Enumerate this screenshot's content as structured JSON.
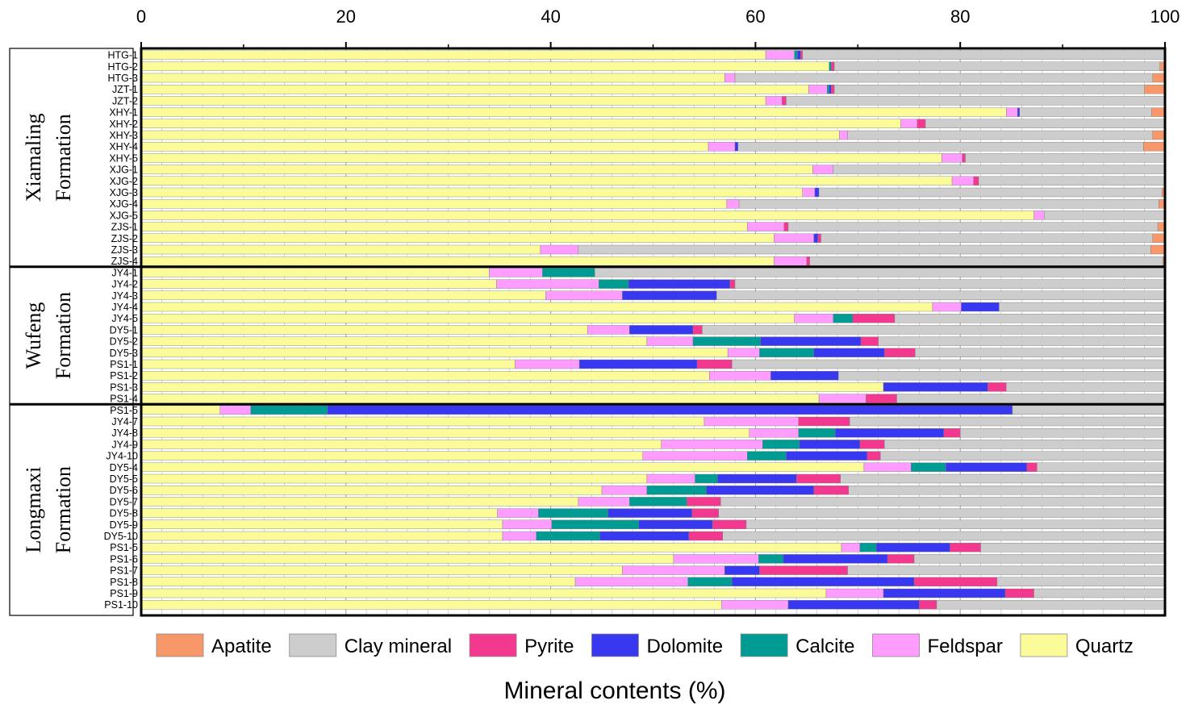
{
  "chart_data": {
    "type": "bar",
    "orientation": "horizontal",
    "stacked": true,
    "xlabel": "Mineral contents (%)",
    "xlim": [
      0,
      100
    ],
    "xticks": [
      "0",
      "20",
      "40",
      "60",
      "80",
      "100"
    ],
    "grid": true,
    "legend_position": "bottom",
    "minerals": [
      {
        "name": "Quartz",
        "color": "#FBFB9A"
      },
      {
        "name": "Feldspar",
        "color": "#FF9CFF"
      },
      {
        "name": "Calcite",
        "color": "#009C94"
      },
      {
        "name": "Dolomite",
        "color": "#3838F0"
      },
      {
        "name": "Pyrite",
        "color": "#F2398F"
      },
      {
        "name": "Clay mineral",
        "color": "#CDCDCD"
      },
      {
        "name": "Apatite",
        "color": "#F7976A"
      }
    ],
    "legend_order": [
      "Apatite",
      "Clay mineral",
      "Pyrite",
      "Dolomite",
      "Calcite",
      "Feldspar",
      "Quartz"
    ],
    "groups": [
      {
        "lines": [
          "Xiamaling",
          "Formation"
        ],
        "samples": [
          "HTG-1",
          "HTG-2",
          "HTG-3",
          "JZT-1",
          "JZT-2",
          "XHY-1",
          "XHY-2",
          "XHY-3",
          "XHY-4",
          "XHY-5",
          "XJG-1",
          "XJG-2",
          "XJG-3",
          "XJG-4",
          "XJG-5",
          "ZJS-1",
          "ZJS-2",
          "ZJS-3",
          "ZJS-4"
        ]
      },
      {
        "lines": [
          "Wufeng",
          "Formation"
        ],
        "samples": [
          "JY4-1",
          "JY4-2",
          "JY4-3",
          "JY4-4",
          "JY4-5",
          "DY5-1",
          "DY5-2",
          "DY5-3",
          "PS1-1",
          "PS1-2",
          "PS1-3",
          "PS1-4"
        ]
      },
      {
        "lines": [
          "Longmaxi",
          "Formation"
        ],
        "samples": [
          "PS1-5",
          "JY4-7",
          "JY4-8",
          "JY4-9",
          "JY4-10",
          "DY5-4",
          "DY5-5",
          "DY5-6",
          "DY5-7",
          "DY5-8",
          "DY5-9",
          "DY5-10",
          "PS1-5",
          "PS1-6",
          "PS1-7",
          "PS1-8",
          "PS1-9",
          "PS1-10"
        ]
      }
    ],
    "samples": [
      {
        "name": "HTG-1",
        "Quartz": 61,
        "Feldspar": 2.8,
        "Calcite": 0.3,
        "Dolomite": 0.3,
        "Pyrite": 0.2,
        "Clay mineral": 35.4,
        "Apatite": 0
      },
      {
        "name": "HTG-2",
        "Quartz": 67.2,
        "Feldspar": 0,
        "Calcite": 0.2,
        "Dolomite": 0,
        "Pyrite": 0.3,
        "Clay mineral": 31.8,
        "Apatite": 0.5
      },
      {
        "name": "HTG-3",
        "Quartz": 57,
        "Feldspar": 1,
        "Calcite": 0,
        "Dolomite": 0,
        "Pyrite": 0,
        "Clay mineral": 40.8,
        "Apatite": 1.2
      },
      {
        "name": "JZT-1",
        "Quartz": 65.2,
        "Feldspar": 1.8,
        "Calcite": 0.2,
        "Dolomite": 0.2,
        "Pyrite": 0.3,
        "Clay mineral": 30.3,
        "Apatite": 2
      },
      {
        "name": "JZT-2",
        "Quartz": 61,
        "Feldspar": 1.6,
        "Calcite": 0,
        "Dolomite": 0,
        "Pyrite": 0.4,
        "Clay mineral": 37,
        "Apatite": 0
      },
      {
        "name": "XHY-1",
        "Quartz": 84.5,
        "Feldspar": 1.1,
        "Calcite": 0,
        "Dolomite": 0.2,
        "Pyrite": 0,
        "Clay mineral": 12.9,
        "Apatite": 1.3
      },
      {
        "name": "XHY-2",
        "Quartz": 74.2,
        "Feldspar": 1.6,
        "Calcite": 0,
        "Dolomite": 0,
        "Pyrite": 0.8,
        "Clay mineral": 23.4,
        "Apatite": 0
      },
      {
        "name": "XHY-3",
        "Quartz": 68.2,
        "Feldspar": 0.8,
        "Calcite": 0,
        "Dolomite": 0,
        "Pyrite": 0,
        "Clay mineral": 29.8,
        "Apatite": 1.2
      },
      {
        "name": "XHY-4",
        "Quartz": 55.4,
        "Feldspar": 2.6,
        "Calcite": 0,
        "Dolomite": 0.3,
        "Pyrite": 0,
        "Clay mineral": 39.6,
        "Apatite": 2.1
      },
      {
        "name": "XHY-5",
        "Quartz": 78.2,
        "Feldspar": 2,
        "Calcite": 0,
        "Dolomite": 0,
        "Pyrite": 0.3,
        "Clay mineral": 19.4,
        "Apatite": 0.1
      },
      {
        "name": "XJG-1",
        "Quartz": 65.6,
        "Feldspar": 2,
        "Calcite": 0,
        "Dolomite": 0,
        "Pyrite": 0,
        "Clay mineral": 32.3,
        "Apatite": 0.1
      },
      {
        "name": "XJG-2",
        "Quartz": 79.2,
        "Feldspar": 2.1,
        "Calcite": 0,
        "Dolomite": 0,
        "Pyrite": 0.5,
        "Clay mineral": 18.2,
        "Apatite": 0
      },
      {
        "name": "XJG-3",
        "Quartz": 64.6,
        "Feldspar": 1.2,
        "Calcite": 0,
        "Dolomite": 0.4,
        "Pyrite": 0,
        "Clay mineral": 33.5,
        "Apatite": 0.3
      },
      {
        "name": "XJG-4",
        "Quartz": 57.2,
        "Feldspar": 1.2,
        "Calcite": 0,
        "Dolomite": 0,
        "Pyrite": 0,
        "Clay mineral": 41,
        "Apatite": 0.6
      },
      {
        "name": "XJG-5",
        "Quartz": 87.2,
        "Feldspar": 1,
        "Calcite": 0,
        "Dolomite": 0,
        "Pyrite": 0,
        "Clay mineral": 11.8,
        "Apatite": 0
      },
      {
        "name": "ZJS-1",
        "Quartz": 59.2,
        "Feldspar": 3.6,
        "Calcite": 0,
        "Dolomite": 0,
        "Pyrite": 0.4,
        "Clay mineral": 36.1,
        "Apatite": 0.7
      },
      {
        "name": "ZJS-2",
        "Quartz": 61.8,
        "Feldspar": 3.9,
        "Calcite": 0,
        "Dolomite": 0.4,
        "Pyrite": 0.3,
        "Clay mineral": 32.4,
        "Apatite": 1.2
      },
      {
        "name": "ZJS-3",
        "Quartz": 39,
        "Feldspar": 3.7,
        "Calcite": 0,
        "Dolomite": 0,
        "Pyrite": 0,
        "Clay mineral": 55.9,
        "Apatite": 1.4
      },
      {
        "name": "ZJS-4",
        "Quartz": 61.8,
        "Feldspar": 3.2,
        "Calcite": 0,
        "Dolomite": 0,
        "Pyrite": 0.3,
        "Clay mineral": 34.5,
        "Apatite": 0.2
      },
      {
        "name": "JY4-1",
        "Quartz": 34,
        "Feldspar": 5.2,
        "Calcite": 5.1,
        "Dolomite": 0,
        "Pyrite": 0,
        "Clay mineral": 55.7,
        "Apatite": 0
      },
      {
        "name": "JY4-2",
        "Quartz": 34.7,
        "Feldspar": 10,
        "Calcite": 2.9,
        "Dolomite": 9.9,
        "Pyrite": 0.5,
        "Clay mineral": 42,
        "Apatite": 0
      },
      {
        "name": "JY4-3",
        "Quartz": 39.5,
        "Feldspar": 7.5,
        "Calcite": 0,
        "Dolomite": 9.2,
        "Pyrite": 0,
        "Clay mineral": 43.8,
        "Apatite": 0
      },
      {
        "name": "JY4-4",
        "Quartz": 77.3,
        "Feldspar": 2.8,
        "Calcite": 0,
        "Dolomite": 3.7,
        "Pyrite": 0,
        "Clay mineral": 16.2,
        "Apatite": 0
      },
      {
        "name": "JY4-5",
        "Quartz": 63.8,
        "Feldspar": 3.8,
        "Calcite": 1.9,
        "Dolomite": 0,
        "Pyrite": 4.1,
        "Clay mineral": 26.4,
        "Apatite": 0
      },
      {
        "name": "DY5-1",
        "Quartz": 43.6,
        "Feldspar": 4.1,
        "Calcite": 0,
        "Dolomite": 6.2,
        "Pyrite": 0.9,
        "Clay mineral": 45.2,
        "Apatite": 0
      },
      {
        "name": "DY5-2",
        "Quartz": 49.4,
        "Feldspar": 4.5,
        "Calcite": 6.6,
        "Dolomite": 9.8,
        "Pyrite": 1.7,
        "Clay mineral": 28,
        "Apatite": 0
      },
      {
        "name": "DY5-3",
        "Quartz": 57.3,
        "Feldspar": 3.1,
        "Calcite": 5.3,
        "Dolomite": 6.9,
        "Pyrite": 3,
        "Clay mineral": 24.4,
        "Apatite": 0
      },
      {
        "name": "PS1-1",
        "Quartz": 36.5,
        "Feldspar": 6.3,
        "Calcite": 0,
        "Dolomite": 11.5,
        "Pyrite": 3.4,
        "Clay mineral": 42.3,
        "Apatite": 0
      },
      {
        "name": "PS1-2",
        "Quartz": 55.5,
        "Feldspar": 6,
        "Calcite": 0,
        "Dolomite": 6.6,
        "Pyrite": 0,
        "Clay mineral": 31.9,
        "Apatite": 0
      },
      {
        "name": "PS1-3",
        "Quartz": 72.5,
        "Feldspar": 0,
        "Calcite": 0,
        "Dolomite": 10.2,
        "Pyrite": 1.8,
        "Clay mineral": 15.5,
        "Apatite": 0
      },
      {
        "name": "PS1-4",
        "Quartz": 66.2,
        "Feldspar": 4.6,
        "Calcite": 0,
        "Dolomite": 0,
        "Pyrite": 3,
        "Clay mineral": 26.2,
        "Apatite": 0
      },
      {
        "name": "PS1-5",
        "Quartz": 7.7,
        "Feldspar": 3,
        "Calcite": 7.5,
        "Dolomite": 66.9,
        "Pyrite": 0,
        "Clay mineral": 14.9,
        "Apatite": 0
      },
      {
        "name": "JY4-7",
        "Quartz": 55,
        "Feldspar": 9.2,
        "Calcite": 0,
        "Dolomite": 0,
        "Pyrite": 5,
        "Clay mineral": 30.8,
        "Apatite": 0
      },
      {
        "name": "JY4-8",
        "Quartz": 59.4,
        "Feldspar": 4.8,
        "Calcite": 3.6,
        "Dolomite": 10.6,
        "Pyrite": 1.6,
        "Clay mineral": 20,
        "Apatite": 0
      },
      {
        "name": "JY4-9",
        "Quartz": 50.8,
        "Feldspar": 9.9,
        "Calcite": 3.6,
        "Dolomite": 5.9,
        "Pyrite": 2.4,
        "Clay mineral": 27.4,
        "Apatite": 0
      },
      {
        "name": "JY4-10",
        "Quartz": 49,
        "Feldspar": 10.2,
        "Calcite": 3.8,
        "Dolomite": 7.9,
        "Pyrite": 1.3,
        "Clay mineral": 27.8,
        "Apatite": 0
      },
      {
        "name": "DY5-4",
        "Quartz": 70.6,
        "Feldspar": 4.6,
        "Calcite": 3.4,
        "Dolomite": 7.9,
        "Pyrite": 1,
        "Clay mineral": 12.5,
        "Apatite": 0
      },
      {
        "name": "DY5-5",
        "Quartz": 49.4,
        "Feldspar": 4.7,
        "Calcite": 2.2,
        "Dolomite": 7.7,
        "Pyrite": 4.3,
        "Clay mineral": 31.7,
        "Apatite": 0
      },
      {
        "name": "DY5-6",
        "Quartz": 45,
        "Feldspar": 4.4,
        "Calcite": 5.8,
        "Dolomite": 10.5,
        "Pyrite": 3.4,
        "Clay mineral": 30.9,
        "Apatite": 0
      },
      {
        "name": "DY5-7",
        "Quartz": 42.7,
        "Feldspar": 5,
        "Calcite": 5.6,
        "Dolomite": 0,
        "Pyrite": 3.3,
        "Clay mineral": 43.4,
        "Apatite": 0
      },
      {
        "name": "DY5-8",
        "Quartz": 34.8,
        "Feldspar": 4,
        "Calcite": 6.8,
        "Dolomite": 8.2,
        "Pyrite": 2.6,
        "Clay mineral": 43.6,
        "Apatite": 0
      },
      {
        "name": "DY5-9",
        "Quartz": 35.3,
        "Feldspar": 4.8,
        "Calcite": 8.5,
        "Dolomite": 7.2,
        "Pyrite": 3.3,
        "Clay mineral": 40.9,
        "Apatite": 0
      },
      {
        "name": "DY5-10",
        "Quartz": 35.3,
        "Feldspar": 3.3,
        "Calcite": 6.2,
        "Dolomite": 8.7,
        "Pyrite": 3.3,
        "Clay mineral": 43.2,
        "Apatite": 0
      },
      {
        "name": "PS1-5",
        "Quartz": 68.4,
        "Feldspar": 1.8,
        "Calcite": 1.6,
        "Dolomite": 7.2,
        "Pyrite": 3,
        "Clay mineral": 18,
        "Apatite": 0
      },
      {
        "name": "PS1-6",
        "Quartz": 52,
        "Feldspar": 8.3,
        "Calcite": 2.4,
        "Dolomite": 10.2,
        "Pyrite": 2.6,
        "Clay mineral": 24.5,
        "Apatite": 0
      },
      {
        "name": "PS1-7",
        "Quartz": 47,
        "Feldspar": 10,
        "Calcite": 0,
        "Dolomite": 3.4,
        "Pyrite": 8.6,
        "Clay mineral": 31,
        "Apatite": 0
      },
      {
        "name": "PS1-8",
        "Quartz": 42.4,
        "Feldspar": 11,
        "Calcite": 4.3,
        "Dolomite": 17.8,
        "Pyrite": 8.1,
        "Clay mineral": 16.4,
        "Apatite": 0
      },
      {
        "name": "PS1-9",
        "Quartz": 66.9,
        "Feldspar": 5.6,
        "Calcite": 0,
        "Dolomite": 11.9,
        "Pyrite": 2.8,
        "Clay mineral": 12.8,
        "Apatite": 0
      },
      {
        "name": "PS1-10",
        "Quartz": 56.7,
        "Feldspar": 6.5,
        "Calcite": 0,
        "Dolomite": 12.8,
        "Pyrite": 1.7,
        "Clay mineral": 22.3,
        "Apatite": 0
      }
    ]
  }
}
